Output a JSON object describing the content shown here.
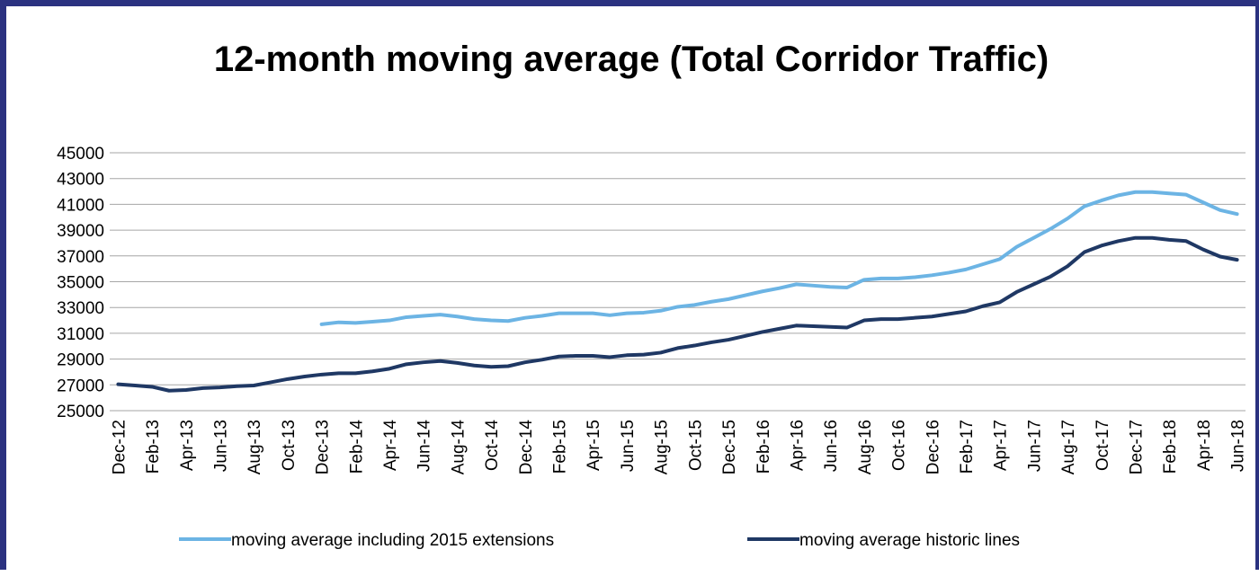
{
  "chart_data": {
    "type": "line",
    "title": "12-month moving average (Total Corridor Traffic)",
    "categories": [
      "Dec-12",
      null,
      "Feb-13",
      null,
      "Apr-13",
      null,
      "Jun-13",
      null,
      "Aug-13",
      null,
      "Oct-13",
      null,
      "Dec-13",
      null,
      "Feb-14",
      null,
      "Apr-14",
      null,
      "Jun-14",
      null,
      "Aug-14",
      null,
      "Oct-14",
      null,
      "Dec-14",
      null,
      "Feb-15",
      null,
      "Apr-15",
      null,
      "Jun-15",
      null,
      "Aug-15",
      null,
      "Oct-15",
      null,
      "Dec-15",
      null,
      "Feb-16",
      null,
      "Apr-16",
      null,
      "Jun-16",
      null,
      "Aug-16",
      null,
      "Oct-16",
      null,
      "Dec-16",
      null,
      "Feb-17",
      null,
      "Apr-17",
      null,
      "Jun-17",
      null,
      "Aug-17",
      null,
      "Oct-17",
      null,
      "Dec-17",
      null,
      "Feb-18",
      null,
      "Apr-18",
      null,
      "Jun-18"
    ],
    "series": [
      {
        "name": "moving average including 2015 extensions",
        "color": "#6cb4e4",
        "values": [
          null,
          null,
          null,
          null,
          null,
          null,
          null,
          null,
          null,
          null,
          null,
          null,
          31700,
          31850,
          31800,
          31900,
          32000,
          32250,
          32350,
          32450,
          32300,
          32100,
          32000,
          31950,
          32200,
          32350,
          32550,
          32550,
          32550,
          32400,
          32550,
          32600,
          32750,
          33050,
          33200,
          33450,
          33650,
          33950,
          34250,
          34500,
          34800,
          34700,
          34600,
          34550,
          35150,
          35250,
          35250,
          35350,
          35500,
          35700,
          35950,
          36350,
          36750,
          37700,
          38400,
          39100,
          39900,
          40850,
          41300,
          41700,
          41950,
          41950,
          41850,
          41750,
          41150,
          40550,
          40250
        ]
      },
      {
        "name": "moving average historic lines",
        "color": "#1f3864",
        "values": [
          27050,
          26950,
          26850,
          26550,
          26600,
          26750,
          26800,
          26900,
          26950,
          27200,
          27450,
          27650,
          27800,
          27900,
          27900,
          28050,
          28250,
          28600,
          28750,
          28850,
          28700,
          28500,
          28400,
          28450,
          28750,
          28950,
          29200,
          29250,
          29250,
          29150,
          29300,
          29350,
          29500,
          29850,
          30050,
          30300,
          30500,
          30800,
          31100,
          31350,
          31600,
          31550,
          31500,
          31450,
          32000,
          32100,
          32100,
          32200,
          32300,
          32500,
          32700,
          33100,
          33400,
          34200,
          34800,
          35400,
          36200,
          37300,
          37800,
          38150,
          38400,
          38400,
          38250,
          38150,
          37500,
          36950,
          36700
        ]
      }
    ],
    "ylim": [
      25000,
      45000
    ],
    "yticks": [
      25000,
      27000,
      29000,
      31000,
      33000,
      35000,
      37000,
      39000,
      41000,
      43000,
      45000
    ],
    "grid": true,
    "legend": "bottom"
  }
}
